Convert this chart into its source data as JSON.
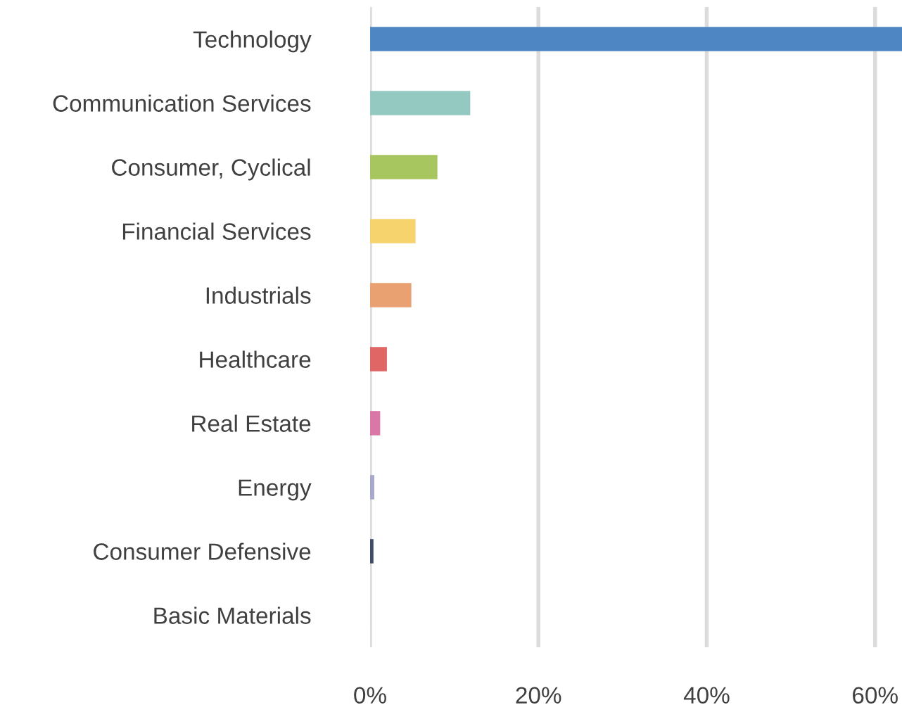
{
  "chart_data": {
    "type": "bar",
    "orientation": "horizontal",
    "categories": [
      "Technology",
      "Communication Services",
      "Consumer, Cyclical",
      "Financial Services",
      "Industrials",
      "Healthcare",
      "Real Estate",
      "Energy",
      "Consumer Defensive",
      "Basic Materials"
    ],
    "values": [
      63.2,
      11.9,
      8.0,
      5.4,
      4.9,
      2.0,
      1.2,
      0.5,
      0.4,
      0.1
    ],
    "colors": [
      "#4e86c4",
      "#93c9c0",
      "#a8c65f",
      "#f7d36e",
      "#e9a172",
      "#e06666",
      "#d877a8",
      "#a6a8cc",
      "#3e4d6a",
      "#d9d9d9"
    ],
    "xlim": [
      0,
      63.2
    ],
    "xticks": [
      {
        "value": 0,
        "label": "0%"
      },
      {
        "value": 20,
        "label": "20%"
      },
      {
        "value": 40,
        "label": "40%"
      },
      {
        "value": 60,
        "label": "60%"
      }
    ],
    "grid": "x",
    "legend": false
  }
}
